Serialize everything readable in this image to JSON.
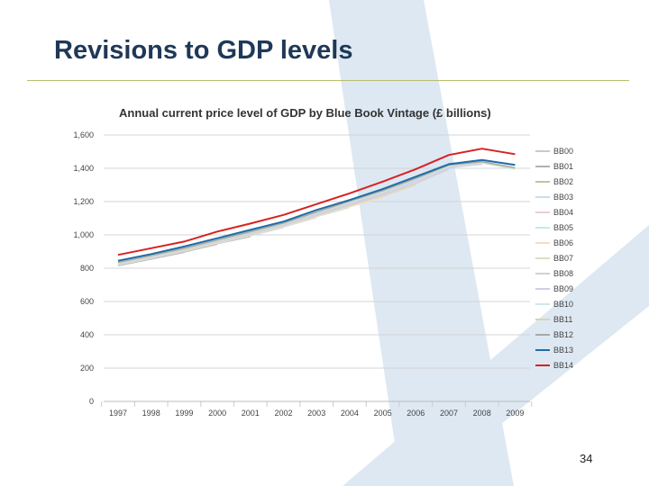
{
  "slide": {
    "title": "Revisions to GDP levels",
    "page_number": "34"
  },
  "colors": {
    "title": "#1f3857",
    "rule": "#b7bd6a",
    "watermark": "#dde8f2"
  },
  "chart_data": {
    "type": "line",
    "title": "Annual current price level of GDP by Blue Book Vintage  (£ billions)",
    "xlabel": "",
    "ylabel": "",
    "categories": [
      "1997",
      "1998",
      "1999",
      "2000",
      "2001",
      "2002",
      "2003",
      "2004",
      "2005",
      "2006",
      "2007",
      "2008",
      "2009"
    ],
    "ylim": [
      0,
      1600
    ],
    "yticks": [
      0,
      200,
      400,
      600,
      800,
      1000,
      1200,
      1400,
      1600
    ],
    "ytick_labels": [
      "0",
      "200",
      "400",
      "600",
      "800",
      "1,000",
      "1,200",
      "1,400",
      "1,600"
    ],
    "grid": true,
    "legend_position": "right",
    "series": [
      {
        "name": "BB00",
        "color": "#c9c9c9",
        "values": [
          815,
          855,
          895,
          null,
          null,
          null,
          null,
          null,
          null,
          null,
          null,
          null,
          null
        ]
      },
      {
        "name": "BB01",
        "color": "#b0b0b0",
        "values": [
          817,
          858,
          898,
          945,
          null,
          null,
          null,
          null,
          null,
          null,
          null,
          null,
          null
        ]
      },
      {
        "name": "BB02",
        "color": "#c4c0a8",
        "values": [
          818,
          858,
          900,
          948,
          990,
          null,
          null,
          null,
          null,
          null,
          null,
          null,
          null
        ]
      },
      {
        "name": "BB03",
        "color": "#c8dced",
        "values": [
          820,
          860,
          902,
          950,
          995,
          1045,
          null,
          null,
          null,
          null,
          null,
          null,
          null
        ]
      },
      {
        "name": "BB04",
        "color": "#e8cfd0",
        "values": [
          822,
          862,
          904,
          952,
          998,
          1048,
          1105,
          null,
          null,
          null,
          null,
          null,
          null
        ]
      },
      {
        "name": "BB05",
        "color": "#c9e5ef",
        "values": [
          824,
          864,
          906,
          955,
          1000,
          1050,
          1110,
          1165,
          null,
          null,
          null,
          null,
          null
        ]
      },
      {
        "name": "BB06",
        "color": "#f1dfcb",
        "values": [
          825,
          866,
          908,
          957,
          1002,
          1052,
          1112,
          1170,
          1225,
          null,
          null,
          null,
          null
        ]
      },
      {
        "name": "BB07",
        "color": "#e2dcc2",
        "values": [
          826,
          867,
          909,
          958,
          1004,
          1055,
          1115,
          1175,
          1232,
          1300,
          null,
          null,
          null
        ]
      },
      {
        "name": "BB08",
        "color": "#d2d2d2",
        "values": [
          828,
          869,
          911,
          960,
          1006,
          1058,
          1118,
          1180,
          1240,
          1310,
          1395,
          null,
          null
        ]
      },
      {
        "name": "BB09",
        "color": "#d5cde3",
        "values": [
          830,
          871,
          914,
          963,
          1010,
          1062,
          1125,
          1188,
          1250,
          1322,
          1405,
          1425,
          null
        ]
      },
      {
        "name": "BB10",
        "color": "#cce8ee",
        "values": [
          832,
          873,
          916,
          966,
          1014,
          1066,
          1130,
          1195,
          1258,
          1330,
          1412,
          1432,
          1395
        ]
      },
      {
        "name": "BB11",
        "color": "#cfd8ae",
        "values": [
          834,
          875,
          918,
          968,
          1017,
          1069,
          1135,
          1200,
          1263,
          1336,
          1418,
          1437,
          1400
        ]
      },
      {
        "name": "BB12",
        "color": "#a9a9a9",
        "values": [
          836,
          877,
          920,
          970,
          1020,
          1072,
          1138,
          1203,
          1267,
          1340,
          1420,
          1440,
          1403
        ]
      },
      {
        "name": "BB13",
        "color": "#1f6ca8",
        "values": [
          845,
          885,
          930,
          980,
          1030,
          1080,
          1150,
          1210,
          1275,
          1350,
          1425,
          1450,
          1420
        ]
      },
      {
        "name": "BB14",
        "color": "#d92121",
        "values": [
          880,
          920,
          960,
          1020,
          1068,
          1120,
          1185,
          1250,
          1320,
          1395,
          1480,
          1518,
          1485
        ]
      }
    ]
  }
}
